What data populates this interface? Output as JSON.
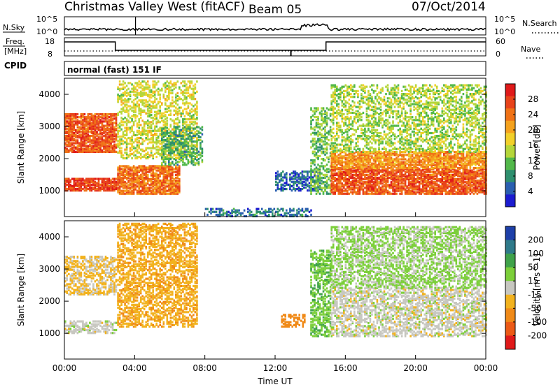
{
  "header": {
    "station": "Christmas Valley West (fitACF)",
    "beam": "Beam 05",
    "date": "07/Oct/2014"
  },
  "noise_panel": {
    "left_label": "N.Sky",
    "right_label": "N.Search",
    "left_top": "10^5",
    "left_bottom": "10^0",
    "right_top": "10^5",
    "right_bottom": "10^0"
  },
  "freq_panel": {
    "left_label_1": "Freq.",
    "left_label_2": "[MHz]",
    "right_label": "Nave",
    "left_top": "18",
    "left_bottom": "8",
    "right_top": "60",
    "right_bottom": "0"
  },
  "cpid_panel": {
    "label": "CPID",
    "mode": "normal (fast) 151 IF"
  },
  "xaxis": {
    "title": "Time UT",
    "ticks": [
      "00:00",
      "04:00",
      "08:00",
      "12:00",
      "16:00",
      "20:00",
      "00:00"
    ]
  },
  "power_panel": {
    "ylabel": "Slant Range [km]",
    "yticks": [
      "1000",
      "2000",
      "3000",
      "4000"
    ],
    "colorbar_title": "Power [dB]",
    "colorbar_ticks": [
      "28",
      "24",
      "20",
      "16",
      "12",
      "8",
      "4"
    ],
    "colors": [
      "#1c1cd0",
      "#2a5fb0",
      "#2e8f6e",
      "#52b84a",
      "#b5d63a",
      "#f2d02a",
      "#f5a21e",
      "#f07216",
      "#e8431a",
      "#e01a1a"
    ]
  },
  "velocity_panel": {
    "ylabel": "Slant Range [km]",
    "yticks": [
      "1000",
      "2000",
      "3000",
      "4000"
    ],
    "colorbar_title": "Velocity [m s^-1]",
    "colorbar_ticks": [
      "200",
      "100",
      "50",
      "15",
      "-15",
      "-50",
      "-100",
      "-200"
    ],
    "colors": [
      "#1d3fa8",
      "#2f7a8a",
      "#3fa24a",
      "#7ccf3a",
      "#c7c7c0",
      "#f2b21e",
      "#f08a18",
      "#ec5a16",
      "#e01a1a"
    ]
  },
  "chart_data": [
    {
      "type": "heatmap",
      "title": "Power",
      "xlabel": "Time UT",
      "ylabel": "Slant Range [km]",
      "xlim": [
        "00:00",
        "24:00"
      ],
      "ylim": [
        200,
        4500
      ],
      "colorbar": {
        "label": "Power [dB]",
        "range": [
          0,
          32
        ]
      },
      "regions": [
        {
          "start": "00:00",
          "end": "03:00",
          "range_lo": 1000,
          "range_hi": 1400,
          "power": 28
        },
        {
          "start": "00:00",
          "end": "03:00",
          "range_lo": 2200,
          "range_hi": 3400,
          "power": 26
        },
        {
          "start": "03:00",
          "end": "06:30",
          "range_lo": 900,
          "range_hi": 1800,
          "power": 24
        },
        {
          "start": "03:00",
          "end": "07:30",
          "range_lo": 2000,
          "range_hi": 4400,
          "power": 16
        },
        {
          "start": "05:30",
          "end": "07:50",
          "range_lo": 1800,
          "range_hi": 3000,
          "power": 10
        },
        {
          "start": "08:00",
          "end": "14:00",
          "range_lo": 200,
          "range_hi": 450,
          "power": 6
        },
        {
          "start": "12:00",
          "end": "14:30",
          "range_lo": 1000,
          "range_hi": 1600,
          "power": 5
        },
        {
          "start": "14:00",
          "end": "15:10",
          "range_lo": 900,
          "range_hi": 3600,
          "power": 12
        },
        {
          "start": "15:10",
          "end": "24:00",
          "range_lo": 900,
          "range_hi": 1700,
          "power": 26
        },
        {
          "start": "15:10",
          "end": "24:00",
          "range_lo": 1700,
          "range_hi": 2200,
          "power": 22
        },
        {
          "start": "15:10",
          "end": "24:00",
          "range_lo": 2200,
          "range_hi": 4300,
          "power": 14
        }
      ]
    },
    {
      "type": "heatmap",
      "title": "Velocity",
      "xlabel": "Time UT",
      "ylabel": "Slant Range [km]",
      "xlim": [
        "00:00",
        "24:00"
      ],
      "ylim": [
        200,
        4500
      ],
      "colorbar": {
        "label": "Velocity [m s^-1]",
        "range": [
          -200,
          200
        ]
      },
      "regions": [
        {
          "start": "00:00",
          "end": "03:00",
          "range_lo": 1000,
          "range_hi": 1400,
          "velocity": 0
        },
        {
          "start": "00:00",
          "end": "03:00",
          "range_lo": 2200,
          "range_hi": 3400,
          "velocity": -20
        },
        {
          "start": "03:00",
          "end": "07:30",
          "range_lo": 1200,
          "range_hi": 4400,
          "velocity": -40
        },
        {
          "start": "12:20",
          "end": "13:40",
          "range_lo": 1200,
          "range_hi": 1600,
          "velocity": -70
        },
        {
          "start": "14:00",
          "end": "15:10",
          "range_lo": 900,
          "range_hi": 3600,
          "velocity": 40
        },
        {
          "start": "15:10",
          "end": "24:00",
          "range_lo": 900,
          "range_hi": 2400,
          "velocity": 0
        },
        {
          "start": "15:10",
          "end": "24:00",
          "range_lo": 2400,
          "range_hi": 4300,
          "velocity": 20
        }
      ]
    }
  ]
}
